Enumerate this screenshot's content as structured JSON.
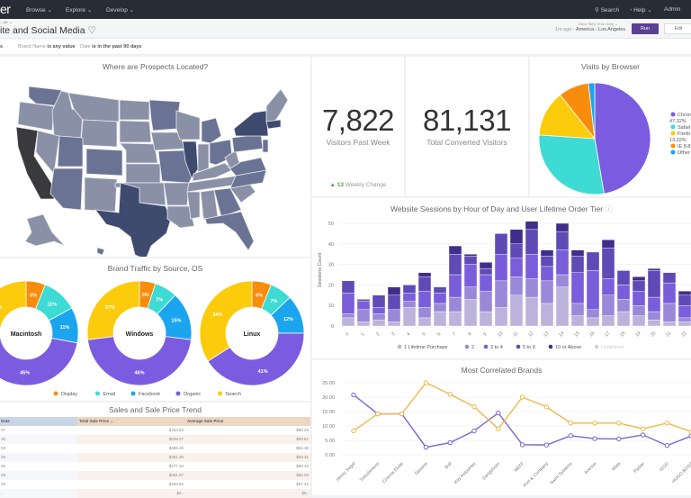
{
  "topnav": {
    "logo": "er",
    "menus": [
      "Browse ⌄",
      "Explore ⌄",
      "Develop ⌄"
    ],
    "search_label": "Search",
    "help_label": "Help ⌄",
    "admin_label": "Admin"
  },
  "header": {
    "breadcrumb": "...ue ⌄",
    "title": "ite and Social Media ♡",
    "timezone_label": "Each Tile's Time Zone ⌄",
    "last_run": "1m ago",
    "timezone_value": "America - Los Angeles",
    "run_label": "Run",
    "edit_label": "Edit"
  },
  "filters": {
    "lead": "s",
    "items": [
      {
        "field": "Brand Name",
        "condition": "is any value"
      },
      {
        "field": "Date",
        "condition": "is in the past 90 days"
      }
    ]
  },
  "map_tile": {
    "title": "Where are Prospects Located?",
    "colors": {
      "low": "#8a90a6",
      "mid": "#6a7393",
      "high": "#3e4a6e",
      "max": "#3a3a3c"
    }
  },
  "kpi_visitors": {
    "value": "7,822",
    "label": "Visitors Past Week",
    "change_arrow": "▲",
    "change_value": "13",
    "change_label": "Weekly Change",
    "change_color": "#5a9b3d"
  },
  "kpi_converted": {
    "value": "81,131",
    "label": "Total Converted Visitors"
  },
  "chart_data": [
    {
      "id": "browser",
      "type": "pie",
      "title": "Visits by Browser",
      "slices": [
        {
          "name": "Chrome",
          "label": "Chron",
          "pct_label": "47.32%",
          "value": 47.32,
          "color": "#7b5ce0"
        },
        {
          "name": "Safari",
          "label": "Safari",
          "pct_label": "",
          "value": 28.73,
          "color": "#3ddbd3"
        },
        {
          "name": "Firefox",
          "label": "Firefo",
          "pct_label": "13.32%",
          "value": 13.32,
          "color": "#fccb0c"
        },
        {
          "name": "IE",
          "label": "IE 8.82",
          "pct_label": "",
          "value": 8.82,
          "color": "#fa8c0d"
        },
        {
          "name": "Other",
          "label": "Other",
          "pct_label": "",
          "value": 1.81,
          "color": "#1ca5ef"
        }
      ]
    },
    {
      "id": "sessions",
      "type": "bar",
      "stacked": true,
      "title": "Website Sessions by Hour of Day and User Lifetime Order Tier",
      "ylabel": "Sessions Count",
      "ylim": [
        0,
        50
      ],
      "yticks": [
        0,
        10,
        20,
        30,
        40,
        50
      ],
      "categories": [
        "0",
        "1",
        "2",
        "3",
        "4",
        "5",
        "6",
        "7",
        "8",
        "9",
        "10",
        "11",
        "12",
        "13",
        "14",
        "15",
        "16",
        "17",
        "18",
        "19",
        "20",
        "21",
        "22",
        "23"
      ],
      "series": [
        {
          "name": "1 Lifetime Purchase",
          "color": "#bcb3dc",
          "values": [
            4,
            2,
            3,
            2,
            9,
            4,
            7,
            7,
            13,
            7,
            9,
            15,
            14,
            11,
            19,
            5,
            4,
            5,
            7,
            5,
            3,
            2,
            2,
            2
          ]
        },
        {
          "name": "2",
          "color": "#9a88d8",
          "values": [
            2,
            6,
            3,
            6,
            3,
            5,
            4,
            7,
            6,
            10,
            13,
            9,
            9,
            11,
            6,
            6,
            4,
            10,
            6,
            5,
            4,
            9,
            2,
            3
          ]
        },
        {
          "name": "3 to 4",
          "color": "#7a5ddb",
          "values": [
            10,
            4,
            3,
            0,
            4,
            8,
            5,
            11,
            11,
            8,
            13,
            9,
            12,
            7,
            12,
            15,
            19,
            8,
            7,
            7,
            7,
            10,
            6,
            6
          ]
        },
        {
          "name": "5 to 9",
          "color": "#5f4bb5",
          "values": [
            6,
            1,
            6,
            7,
            4,
            7,
            3,
            10,
            4,
            3,
            10,
            7,
            12,
            5,
            9,
            8,
            9,
            15,
            7,
            5,
            13,
            5,
            5,
            3
          ]
        },
        {
          "name": "10 or Above",
          "color": "#3f2f8a",
          "values": [
            0,
            0,
            0,
            4,
            0,
            2,
            0,
            4,
            1,
            3,
            0,
            7,
            4,
            3,
            4,
            3,
            0,
            4,
            0,
            2,
            1,
            0,
            2,
            1
          ]
        },
        {
          "name": "Undefined",
          "color": "#d6d6d6",
          "values": [
            0,
            0,
            0,
            0,
            0,
            0,
            0,
            0,
            0,
            0,
            0,
            0,
            0,
            0,
            0,
            0,
            0,
            0,
            0,
            0,
            0,
            0,
            0,
            0
          ]
        }
      ]
    },
    {
      "id": "brand_traffic",
      "type": "pie",
      "donut": true,
      "title": "Brand Traffic by Source, OS",
      "legend": [
        {
          "name": "Display",
          "color": "#fa8c0d"
        },
        {
          "name": "Email",
          "color": "#3ddbd3"
        },
        {
          "name": "Facebook",
          "color": "#1ca5ef"
        },
        {
          "name": "Organic",
          "color": "#7b5ce0"
        },
        {
          "name": "Search",
          "color": "#fccb0c"
        }
      ],
      "donuts": [
        {
          "os": "Macintosh",
          "values": [
            6,
            11,
            11,
            45,
            27
          ],
          "labels": [
            "6%",
            "11%",
            "11%",
            "45%",
            "27%"
          ]
        },
        {
          "os": "Windows",
          "values": [
            5,
            7,
            15,
            46,
            27
          ],
          "labels": [
            "5%",
            "7%",
            "15%",
            "46%",
            "27%"
          ]
        },
        {
          "os": "Linux",
          "values": [
            6,
            7,
            12,
            41,
            34
          ],
          "labels": [
            "6%",
            "7%",
            "12%",
            "41%",
            "34%"
          ]
        }
      ]
    },
    {
      "id": "correlated",
      "type": "line",
      "title": "Most Correlated Brands",
      "ylim": [
        0,
        25
      ],
      "yticks": [
        "0.00",
        "5.00",
        "10.00",
        "15.00",
        "20.00",
        "25.00"
      ],
      "categories": [
        "Henry Segal",
        "Torkshtmens",
        "Cinema Etoile",
        "Sasaine",
        "Bull",
        "Key Industries",
        "Gangshoes",
        "NEFF",
        "Port & Company",
        "Swim Systems",
        "Avenue",
        "Mata",
        "Parker",
        "IZOD",
        "HUGO BOSS"
      ],
      "series": [
        {
          "name": "Series A",
          "color": "#7b64d6",
          "values": [
            20.8,
            14.2,
            14.2,
            2.6,
            4.2,
            8.3,
            14.5,
            3.5,
            3.4,
            6.6,
            5.6,
            5.5,
            6.9,
            3.2,
            6.5
          ]
        },
        {
          "name": "Series B",
          "color": "#f1b84a",
          "values": [
            8.3,
            14.2,
            14.2,
            25.0,
            21.0,
            16.7,
            9.0,
            20.0,
            16.6,
            11.0,
            11.0,
            11.0,
            9.0,
            11.0,
            8.0
          ]
        }
      ]
    }
  ],
  "sales_table": {
    "title": "Sales and Sale Price Trend",
    "columns": [
      "Date",
      "Total Sale Price ⌄",
      "Average Sale Price"
    ],
    "rows": [
      [
        "07",
        "$753.93",
        "$50.26"
      ],
      [
        "30",
        "$529.27",
        "$58.81"
      ],
      [
        "03",
        "$489.45",
        "$54.38"
      ],
      [
        "25",
        "$481.35",
        "$53.31"
      ],
      [
        "06",
        "$477.10",
        "$68.16"
      ],
      [
        "29",
        "$461.97",
        "$66.00"
      ],
      [
        "20",
        "$459.60",
        "$57.45"
      ],
      [
        "..",
        "$4..",
        "$5.."
      ]
    ]
  }
}
